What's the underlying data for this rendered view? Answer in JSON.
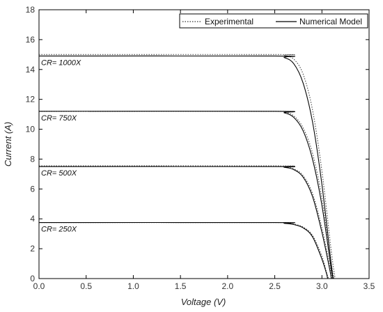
{
  "chart_data": {
    "type": "line",
    "xlabel": "Voltage (V)",
    "ylabel": "Current (A)",
    "xlim": [
      0,
      3.5
    ],
    "ylim": [
      0,
      18
    ],
    "xticks": [
      "0.0",
      "0.5",
      "1.0",
      "1.5",
      "2.0",
      "2.5",
      "3.0",
      "3.5"
    ],
    "yticks": [
      "0",
      "2",
      "4",
      "6",
      "8",
      "10",
      "12",
      "14",
      "16",
      "18"
    ],
    "grid": false,
    "legend": {
      "placement": "top-right",
      "entries": [
        {
          "label": "Experimental",
          "style": "dotted"
        },
        {
          "label": "Numerical Model",
          "style": "solid"
        }
      ]
    },
    "curves": [
      {
        "annotation": "CR= 1000X",
        "numerical": [
          [
            0.0,
            14.9
          ],
          [
            2.5,
            14.9
          ],
          [
            2.6,
            14.8
          ],
          [
            2.7,
            14.4
          ],
          [
            2.8,
            13.1
          ],
          [
            2.9,
            10.5
          ],
          [
            3.0,
            6.3
          ],
          [
            3.1,
            0.9
          ],
          [
            3.12,
            0.0
          ]
        ],
        "experimental": [
          [
            0.0,
            15.0
          ],
          [
            2.5,
            15.0
          ],
          [
            2.6,
            14.95
          ],
          [
            2.7,
            14.7
          ],
          [
            2.8,
            13.7
          ],
          [
            2.9,
            11.3
          ],
          [
            3.0,
            7.2
          ],
          [
            3.1,
            1.8
          ],
          [
            3.14,
            0.0
          ]
        ]
      },
      {
        "annotation": "CR= 750X",
        "numerical": [
          [
            0.0,
            11.2
          ],
          [
            2.5,
            11.2
          ],
          [
            2.6,
            11.1
          ],
          [
            2.7,
            10.8
          ],
          [
            2.8,
            9.9
          ],
          [
            2.9,
            8.0
          ],
          [
            3.0,
            4.9
          ],
          [
            3.1,
            0.6
          ],
          [
            3.12,
            0.0
          ]
        ],
        "experimental": [
          [
            0.0,
            11.2
          ],
          [
            2.5,
            11.2
          ],
          [
            2.6,
            11.15
          ],
          [
            2.7,
            10.9
          ],
          [
            2.8,
            10.1
          ],
          [
            2.9,
            8.4
          ],
          [
            3.0,
            5.4
          ],
          [
            3.1,
            1.0
          ],
          [
            3.13,
            0.0
          ]
        ]
      },
      {
        "annotation": "CR= 500X",
        "numerical": [
          [
            0.0,
            7.5
          ],
          [
            2.5,
            7.5
          ],
          [
            2.6,
            7.45
          ],
          [
            2.7,
            7.3
          ],
          [
            2.8,
            6.8
          ],
          [
            2.9,
            5.5
          ],
          [
            3.0,
            3.1
          ],
          [
            3.08,
            0.7
          ],
          [
            3.1,
            0.0
          ]
        ],
        "experimental": [
          [
            0.0,
            7.55
          ],
          [
            2.5,
            7.55
          ],
          [
            2.6,
            7.5
          ],
          [
            2.7,
            7.35
          ],
          [
            2.8,
            6.9
          ],
          [
            2.9,
            5.7
          ],
          [
            3.0,
            3.4
          ],
          [
            3.08,
            1.0
          ],
          [
            3.11,
            0.0
          ]
        ]
      },
      {
        "annotation": "CR= 250X",
        "numerical": [
          [
            0.0,
            3.75
          ],
          [
            2.5,
            3.75
          ],
          [
            2.6,
            3.7
          ],
          [
            2.7,
            3.62
          ],
          [
            2.8,
            3.4
          ],
          [
            2.9,
            2.8
          ],
          [
            3.0,
            1.3
          ],
          [
            3.05,
            0.3
          ],
          [
            3.06,
            0.0
          ]
        ],
        "experimental": [
          [
            0.0,
            3.75
          ],
          [
            2.5,
            3.75
          ],
          [
            2.6,
            3.72
          ],
          [
            2.7,
            3.65
          ],
          [
            2.8,
            3.45
          ],
          [
            2.9,
            2.9
          ],
          [
            3.0,
            1.5
          ],
          [
            3.05,
            0.4
          ],
          [
            3.07,
            0.0
          ]
        ]
      }
    ]
  }
}
